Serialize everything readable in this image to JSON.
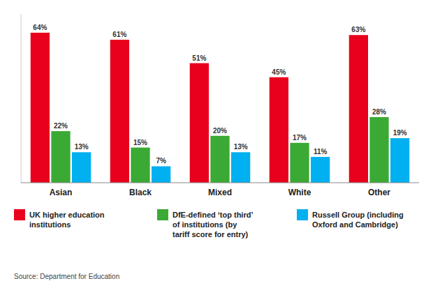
{
  "chart_data": {
    "type": "bar",
    "categories": [
      "Asian",
      "Black",
      "Mixed",
      "White",
      "Other"
    ],
    "series": [
      {
        "name": "UK higher education\ninstitutions",
        "color": "#e8001c",
        "values": [
          64,
          61,
          51,
          45,
          63
        ],
        "value_labels": [
          "64%",
          "61%",
          "51%",
          "45%",
          "63%"
        ]
      },
      {
        "name": "DfE-defined ‘top third’\nof institutions (by\ntariff score for entry)",
        "color": "#3aaa35",
        "values": [
          22,
          15,
          20,
          17,
          28
        ],
        "value_labels": [
          "22%",
          "15%",
          "20%",
          "17%",
          "28%"
        ]
      },
      {
        "name": "Russell Group (including\nOxford and Cambridge)",
        "color": "#00b0f0",
        "values": [
          13,
          7,
          13,
          11,
          19
        ],
        "value_labels": [
          "13%",
          "7%",
          "13%",
          "11%",
          "19%"
        ]
      }
    ],
    "ylim": [
      0,
      72
    ],
    "data_labels": true,
    "tick_labels": "x",
    "grid": false,
    "legend": "bottom",
    "annotations": [
      "Source: Department for Education"
    ]
  }
}
